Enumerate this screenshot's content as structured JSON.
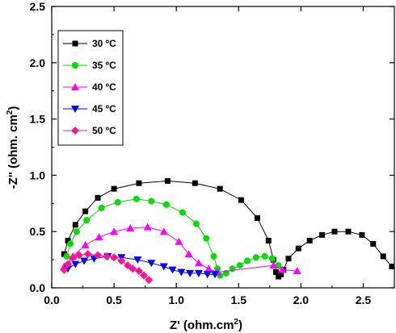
{
  "chart_data": {
    "type": "scatter",
    "title": "",
    "xlabel": "Z' (ohm.cm",
    "xlabel_sup": "2",
    "xlabel_end": ")",
    "ylabel": "-Z'' (ohm. cm",
    "ylabel_sup": "2",
    "ylabel_end": ")",
    "xlim": [
      0,
      2.75
    ],
    "ylim": [
      0,
      2.5
    ],
    "xticks": [
      0.0,
      0.5,
      1.0,
      1.5,
      2.0,
      2.5
    ],
    "xtick_labels": [
      "0.0",
      "0.5",
      "1.0",
      "1.5",
      "2.0",
      "2.5"
    ],
    "yticks": [
      0.0,
      0.5,
      1.0,
      1.5,
      2.0,
      2.5
    ],
    "ytick_labels": [
      "0.0",
      "0.5",
      "1.0",
      "1.5",
      "2.0",
      "2.5"
    ],
    "grid": false,
    "legend_position": "top-left",
    "series": [
      {
        "name": "30 ºC",
        "color": "#000000",
        "marker": "square",
        "points": [
          [
            0.1,
            0.3
          ],
          [
            0.13,
            0.42
          ],
          [
            0.19,
            0.56
          ],
          [
            0.27,
            0.68
          ],
          [
            0.37,
            0.8
          ],
          [
            0.5,
            0.88
          ],
          [
            0.7,
            0.93
          ],
          [
            0.93,
            0.95
          ],
          [
            1.15,
            0.93
          ],
          [
            1.35,
            0.88
          ],
          [
            1.52,
            0.78
          ],
          [
            1.65,
            0.62
          ],
          [
            1.74,
            0.42
          ],
          [
            1.78,
            0.25
          ],
          [
            1.8,
            0.14
          ],
          [
            1.82,
            0.1
          ],
          [
            1.84,
            0.12
          ],
          [
            1.86,
            0.16
          ],
          [
            1.9,
            0.26
          ],
          [
            1.98,
            0.35
          ],
          [
            2.07,
            0.42
          ],
          [
            2.17,
            0.47
          ],
          [
            2.27,
            0.5
          ],
          [
            2.38,
            0.5
          ],
          [
            2.49,
            0.47
          ],
          [
            2.58,
            0.39
          ],
          [
            2.66,
            0.28
          ],
          [
            2.73,
            0.19
          ]
        ]
      },
      {
        "name": "35 ºC",
        "color": "#00dd00",
        "marker": "circle",
        "points": [
          [
            0.12,
            0.28
          ],
          [
            0.15,
            0.39
          ],
          [
            0.2,
            0.5
          ],
          [
            0.28,
            0.6
          ],
          [
            0.4,
            0.71
          ],
          [
            0.53,
            0.76
          ],
          [
            0.68,
            0.79
          ],
          [
            0.8,
            0.77
          ],
          [
            0.92,
            0.74
          ],
          [
            1.05,
            0.67
          ],
          [
            1.16,
            0.57
          ],
          [
            1.24,
            0.44
          ],
          [
            1.3,
            0.28
          ],
          [
            1.33,
            0.17
          ],
          [
            1.35,
            0.11
          ],
          [
            1.4,
            0.13
          ],
          [
            1.45,
            0.17
          ],
          [
            1.51,
            0.2
          ],
          [
            1.57,
            0.24
          ],
          [
            1.64,
            0.27
          ],
          [
            1.71,
            0.28
          ],
          [
            1.77,
            0.26
          ],
          [
            1.82,
            0.2
          ]
        ]
      },
      {
        "name": "40 ºC",
        "color": "#ff00ff",
        "marker": "triangle",
        "points": [
          [
            0.1,
            0.19
          ],
          [
            0.17,
            0.28
          ],
          [
            0.27,
            0.38
          ],
          [
            0.38,
            0.45
          ],
          [
            0.5,
            0.5
          ],
          [
            0.63,
            0.53
          ],
          [
            0.77,
            0.54
          ],
          [
            0.9,
            0.5
          ],
          [
            1.02,
            0.41
          ],
          [
            1.1,
            0.3
          ],
          [
            1.18,
            0.22
          ],
          [
            1.26,
            0.17
          ],
          [
            1.33,
            0.14
          ],
          [
            1.78,
            0.2
          ],
          [
            1.85,
            0.16
          ],
          [
            1.97,
            0.15
          ]
        ]
      },
      {
        "name": "45 ºC",
        "color": "#0000ff",
        "marker": "triangle-down",
        "points": [
          [
            0.13,
            0.17
          ],
          [
            0.19,
            0.21
          ],
          [
            0.26,
            0.24
          ],
          [
            0.34,
            0.26
          ],
          [
            0.45,
            0.28
          ],
          [
            0.56,
            0.27
          ],
          [
            0.69,
            0.25
          ],
          [
            0.8,
            0.22
          ],
          [
            0.9,
            0.19
          ],
          [
            0.97,
            0.16
          ],
          [
            1.04,
            0.14
          ],
          [
            1.11,
            0.13
          ],
          [
            1.18,
            0.13
          ],
          [
            1.25,
            0.12
          ],
          [
            1.31,
            0.12
          ]
        ]
      },
      {
        "name": "50 ºC",
        "color": "#ff1493",
        "marker": "diamond",
        "points": [
          [
            0.1,
            0.16
          ],
          [
            0.13,
            0.21
          ],
          [
            0.17,
            0.27
          ],
          [
            0.22,
            0.29
          ],
          [
            0.29,
            0.3
          ],
          [
            0.37,
            0.29
          ],
          [
            0.44,
            0.28
          ],
          [
            0.5,
            0.27
          ],
          [
            0.56,
            0.24
          ],
          [
            0.61,
            0.2
          ],
          [
            0.65,
            0.17
          ],
          [
            0.7,
            0.15
          ],
          [
            0.74,
            0.11
          ],
          [
            0.78,
            0.07
          ]
        ]
      }
    ]
  }
}
